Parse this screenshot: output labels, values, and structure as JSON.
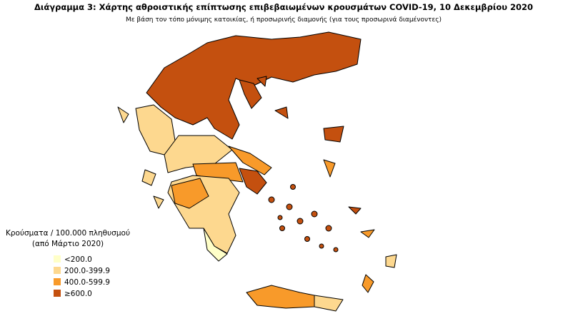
{
  "header": {
    "title": "Διάγραμμα 3: Χάρτης αθροιστικής επίπτωσης επιβεβαιωμένων κρουσμάτων COVID-19, 10 Δεκεμβρίου 2020",
    "subtitle": "Με βάση τον τόπο μόνιμης κατοικίας, ή προσωρινής διαμονής (για τους προσωρινά διαμένοντες)"
  },
  "legend": {
    "title": [
      "Κρούσματα / 100.000 πληθυσμού",
      "(από Μάρτιο 2020)"
    ],
    "items": [
      {
        "label": "<200.0",
        "color": "#ffffc8"
      },
      {
        "label": "200.0-399.9",
        "color": "#fdd88f"
      },
      {
        "label": "400.0-599.9",
        "color": "#f89a2a"
      },
      {
        "label": "≥600.0",
        "color": "#c4500f"
      }
    ]
  }
}
